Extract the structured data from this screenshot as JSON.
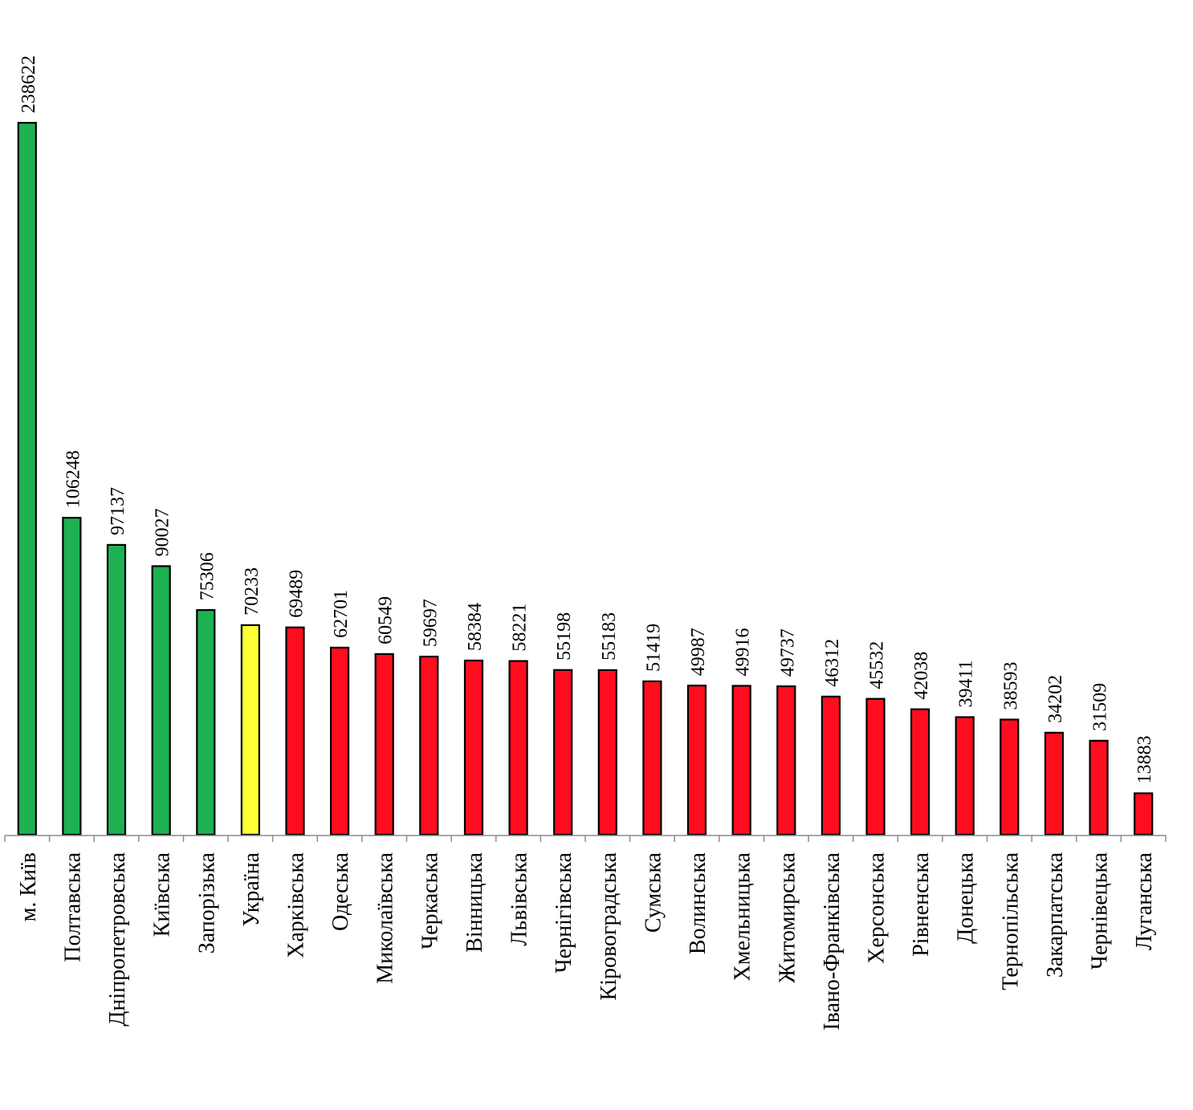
{
  "chart_data": {
    "type": "bar",
    "title": "",
    "xlabel": "",
    "ylabel": "",
    "ylim": [
      0,
      250000
    ],
    "grid": false,
    "legend": "none",
    "categories": [
      "м. Київ",
      "Полтавська",
      "Дніпропетровська",
      "Київська",
      "Запорізька",
      "Україна",
      "Харківська",
      "Одеська",
      "Миколаївська",
      "Черкаська",
      "Вінницька",
      "Львівська",
      "Чернігівська",
      "Кіровоградська",
      "Сумська",
      "Волинська",
      "Хмельницька",
      "Житомирська",
      "Івано-Франківська",
      "Херсонська",
      "Рівненська",
      "Донецька",
      "Тернопільська",
      "Закарпатська",
      "Чернівецька",
      "Луганська"
    ],
    "values": [
      238622,
      106248,
      97137,
      90027,
      75306,
      70233,
      69489,
      62701,
      60549,
      59697,
      58384,
      58221,
      55198,
      55183,
      51419,
      49987,
      49916,
      49737,
      46312,
      45532,
      42038,
      39411,
      38593,
      34202,
      31509,
      13883
    ],
    "value_labels": [
      "238622",
      "106248",
      "97137",
      "90027",
      "75306",
      "70233",
      "69489",
      "62701",
      "60549",
      "59697",
      "58384",
      "58221",
      "55198",
      "55183",
      "51419",
      "49987",
      "49916",
      "49737",
      "46312",
      "45532",
      "42038",
      "39411",
      "38593",
      "34202",
      "31509",
      "13883"
    ],
    "bar_colors": [
      "#1db151",
      "#1db151",
      "#1db151",
      "#1db151",
      "#1db151",
      "#ffff33",
      "#ff0d1f",
      "#ff0d1f",
      "#ff0d1f",
      "#ff0d1f",
      "#ff0d1f",
      "#ff0d1f",
      "#ff0d1f",
      "#ff0d1f",
      "#ff0d1f",
      "#ff0d1f",
      "#ff0d1f",
      "#ff0d1f",
      "#ff0d1f",
      "#ff0d1f",
      "#ff0d1f",
      "#ff0d1f",
      "#ff0d1f",
      "#ff0d1f",
      "#ff0d1f",
      "#ff0d1f"
    ],
    "colors": {
      "above_average": "#1db151",
      "national": "#ffff33",
      "below_average": "#ff0d1f",
      "bar_outline": "#000000",
      "axis": "#8c8c8c"
    }
  }
}
